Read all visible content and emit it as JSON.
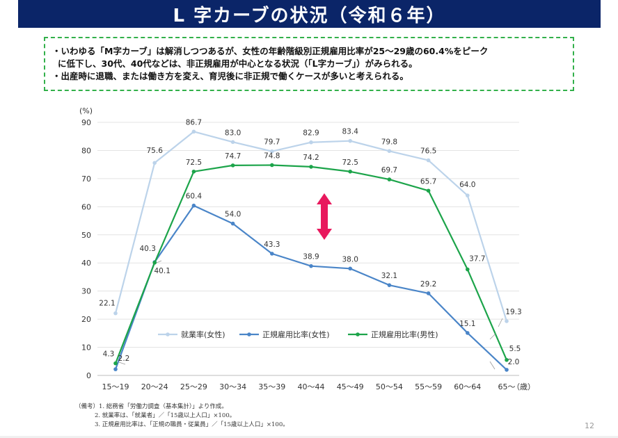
{
  "title": "L 字カーブの状況（令和６年）",
  "summary": [
    "・いわゆる「M字カーブ」は解消しつつあるが、女性の年齢階級別正規雇用比率が25～29歳の60.4%をピーク",
    "に低下し、30代、40代などは、非正規雇用が中心となる状況（「L字カーブ」）がみられる。",
    "・出産時に退職、または働き方を変え、育児後に非正規で働くケースが多いと考えられる。"
  ],
  "notes": [
    "（備考）1. 総務省「労働力調査（基本集計）」より作成。",
    "2. 就業率は、「就業者」／「15歳以上人口」×100。",
    "3. 正規雇用比率は、「正規の職員・従業員」／「15歳以上人口」×100。"
  ],
  "page_number": "12",
  "colors": {
    "title_bg": "#0b2568",
    "box_border": "#32b04a",
    "employment_women": "#bcd3ea",
    "regular_women": "#4a85c8",
    "regular_men": "#1ca44a",
    "arrow": "#e8185d"
  },
  "chart_data": {
    "type": "line",
    "ylabel": "(%)",
    "xlabel": "（歳）",
    "ylim": [
      0,
      90
    ],
    "yticks": [
      0,
      10,
      20,
      30,
      40,
      50,
      60,
      70,
      80,
      90
    ],
    "grid": true,
    "legend_position": "lower-center",
    "categories": [
      "15～19",
      "20～24",
      "25～29",
      "30～34",
      "35～39",
      "40～44",
      "45～49",
      "50～54",
      "55～59",
      "60～64",
      "65～"
    ],
    "series": [
      {
        "name": "就業率(女性)",
        "color": "#bcd3ea",
        "values": [
          22.1,
          75.6,
          86.7,
          83.0,
          79.7,
          82.9,
          83.4,
          79.8,
          76.5,
          64.0,
          19.3
        ]
      },
      {
        "name": "正規雇用比率(女性)",
        "color": "#4a85c8",
        "values": [
          2.2,
          40.3,
          60.4,
          54.0,
          43.3,
          38.9,
          38.0,
          32.1,
          29.2,
          15.1,
          2.0
        ]
      },
      {
        "name": "正規雇用比率(男性)",
        "color": "#1ca44a",
        "values": [
          4.3,
          40.1,
          72.5,
          74.7,
          74.8,
          74.2,
          72.5,
          69.7,
          65.7,
          37.7,
          5.5
        ]
      }
    ]
  }
}
